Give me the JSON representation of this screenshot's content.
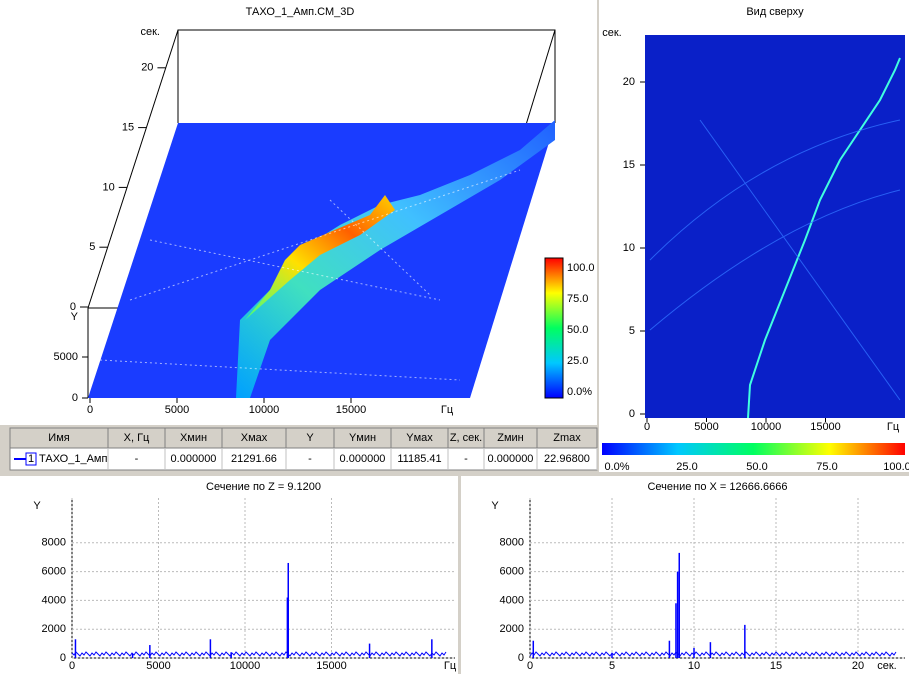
{
  "plot3d": {
    "title": "ТАХО_1_Амп.СМ_3D",
    "z_label": "сек.",
    "z_ticks": [
      0,
      5,
      10,
      15,
      20
    ],
    "y_label": "Y",
    "y_ticks": [
      0,
      5000
    ],
    "x_ticks": [
      0,
      5000,
      10000,
      15000
    ],
    "x_label": "Гц",
    "colorbar_labels": [
      "0.0%",
      "25.0",
      "50.0",
      "75.0",
      "100.0"
    ]
  },
  "top_view": {
    "title": "Вид сверху",
    "y_label": "сек.",
    "y_ticks": [
      0,
      5,
      10,
      15,
      20
    ],
    "x_ticks": [
      0,
      5000,
      10000,
      15000
    ],
    "x_label": "Гц",
    "colorbar_labels": [
      "0.0%",
      "25.0",
      "50.0",
      "75.0",
      "100.0"
    ]
  },
  "table": {
    "headers": [
      "Имя",
      "X, Гц",
      "Xмин",
      "Xмах",
      "Y",
      "Yмин",
      "Yмах",
      "Z, сек.",
      "Zмин",
      "Zmax"
    ],
    "rows": [
      [
        "ТАХО_1_Амп",
        "-",
        "0.000000",
        "21291.66",
        "-",
        "0.000000",
        "11185.41",
        "-",
        "0.000000",
        "22.96800"
      ]
    ],
    "row_numbers": [
      "1"
    ]
  },
  "section_z": {
    "title": "Сечение по Z = 9.1200",
    "y_label": "Y",
    "y_ticks": [
      0,
      2000,
      4000,
      6000,
      8000
    ],
    "x_ticks": [
      0,
      5000,
      10000,
      15000
    ],
    "x_label": "Гц",
    "peaks": {
      "x": [
        200,
        3500,
        4500,
        8000,
        9200,
        12450,
        12500,
        17200,
        20800
      ],
      "values": [
        1300,
        300,
        900,
        1300,
        400,
        4200,
        6600,
        1000,
        1300
      ]
    }
  },
  "section_x": {
    "title": "Сечение по X = 12666.6666",
    "y_label": "Y",
    "y_ticks": [
      0,
      2000,
      4000,
      6000,
      8000
    ],
    "x_ticks": [
      0,
      5,
      10,
      15,
      20
    ],
    "x_label": "сек.",
    "peaks": {
      "x": [
        0.2,
        5,
        8.5,
        8.9,
        9.0,
        9.1,
        10,
        11,
        13.1
      ],
      "values": [
        1200,
        300,
        1200,
        3800,
        6000,
        7300,
        700,
        1100,
        2300
      ]
    }
  }
}
